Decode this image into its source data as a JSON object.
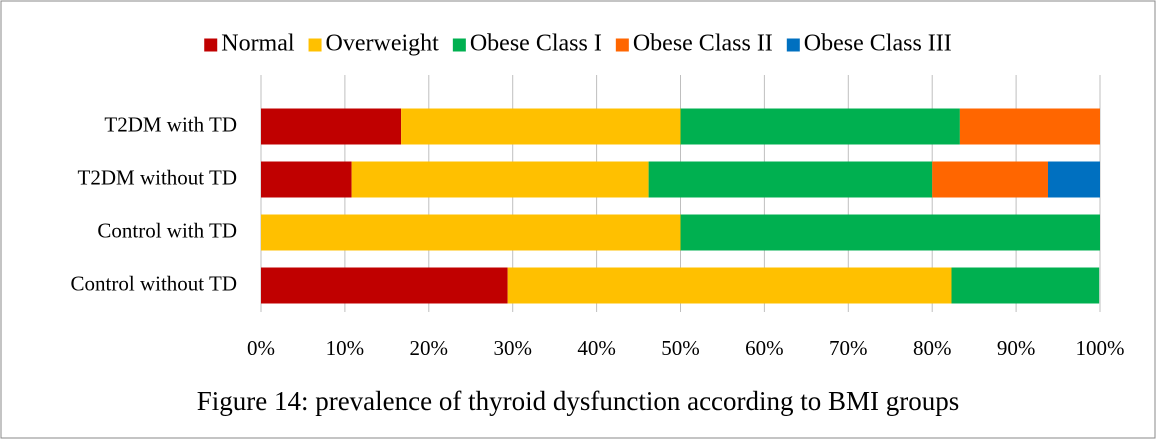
{
  "chart_data": {
    "type": "stacked_barh",
    "caption": "Figure 14: prevalence of thyroid dysfunction according to BMI groups",
    "categories": [
      "T2DM with TD",
      "T2DM without TD",
      "Control with TD",
      "Control without TD"
    ],
    "series": [
      {
        "name": "Normal",
        "color": "#c00000",
        "values": [
          16.7,
          10.8,
          0,
          29.4
        ]
      },
      {
        "name": "Overweight",
        "color": "#ffc000",
        "values": [
          33.3,
          35.4,
          50,
          52.9
        ]
      },
      {
        "name": "Obese Class I",
        "color": "#00b050",
        "values": [
          33.3,
          33.8,
          50,
          17.6
        ]
      },
      {
        "name": "Obese Class II",
        "color": "#ff6600",
        "values": [
          16.7,
          13.8,
          0,
          0
        ]
      },
      {
        "name": "Obese Class III",
        "color": "#0070c0",
        "values": [
          0,
          6.2,
          0,
          0
        ]
      }
    ],
    "xlim": [
      0,
      100
    ],
    "xticks": [
      {
        "value": 0,
        "label": "0%"
      },
      {
        "value": 10,
        "label": "10%"
      },
      {
        "value": 20,
        "label": "20%"
      },
      {
        "value": 30,
        "label": "30%"
      },
      {
        "value": 40,
        "label": "40%"
      },
      {
        "value": 50,
        "label": "50%"
      },
      {
        "value": 60,
        "label": "60%"
      },
      {
        "value": 70,
        "label": "70%"
      },
      {
        "value": 80,
        "label": "80%"
      },
      {
        "value": 90,
        "label": "90%"
      },
      {
        "value": 100,
        "label": "100%"
      }
    ],
    "grid": true,
    "legend": "top"
  }
}
